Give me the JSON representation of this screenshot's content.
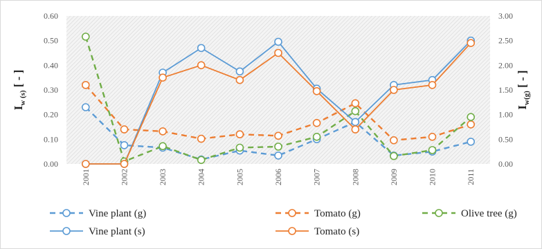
{
  "chart_data": {
    "type": "line",
    "categories": [
      "2001",
      "2002",
      "2003",
      "2004",
      "2005",
      "2006",
      "2007",
      "2008",
      "2009",
      "2010",
      "2011"
    ],
    "left_axis": {
      "label_main": "I",
      "label_sub": "w (s)",
      "label_tail": " [ - ]",
      "ylim": [
        0,
        0.6
      ],
      "ticks": [
        "0.00",
        "0.10",
        "0.20",
        "0.30",
        "0.40",
        "0.50",
        "0.60"
      ]
    },
    "right_axis": {
      "label_main": "I",
      "label_sub": "w(g)",
      "label_tail": " [ - ]",
      "ylim": [
        0,
        3
      ],
      "ticks": [
        "0.00",
        "0.50",
        "1.00",
        "1.50",
        "2.00",
        "2.50",
        "3.00"
      ]
    },
    "grid": "hatched background, no gridlines",
    "legend_position": "bottom",
    "series": [
      {
        "name": "Vine plant (g)",
        "axis": "right",
        "style": "dashed",
        "color": "#5B9BD5",
        "values": [
          1.15,
          0.38,
          0.33,
          0.09,
          0.27,
          0.17,
          0.5,
          0.85,
          0.17,
          0.25,
          0.45
        ]
      },
      {
        "name": "Tomato (g)",
        "axis": "right",
        "style": "dashed",
        "color": "#ED7D31",
        "values": [
          1.6,
          0.7,
          0.66,
          0.51,
          0.6,
          0.57,
          0.83,
          1.23,
          0.48,
          0.55,
          0.8
        ]
      },
      {
        "name": "Olive tree (g)",
        "axis": "right",
        "style": "dashed",
        "color": "#70AD47",
        "values": [
          2.58,
          0.05,
          0.36,
          0.08,
          0.33,
          0.35,
          0.55,
          1.07,
          0.16,
          0.28,
          0.95
        ]
      },
      {
        "name": "Vine plant (s)",
        "axis": "left",
        "style": "solid",
        "color": "#5B9BD5",
        "values": [
          0.0,
          0.0,
          0.37,
          0.47,
          0.375,
          0.495,
          0.305,
          0.17,
          0.32,
          0.34,
          0.5
        ]
      },
      {
        "name": "Tomato (s)",
        "axis": "left",
        "style": "solid",
        "color": "#ED7D31",
        "values": [
          0.0,
          0.0,
          0.35,
          0.4,
          0.34,
          0.45,
          0.295,
          0.14,
          0.3,
          0.32,
          0.49
        ]
      }
    ]
  }
}
